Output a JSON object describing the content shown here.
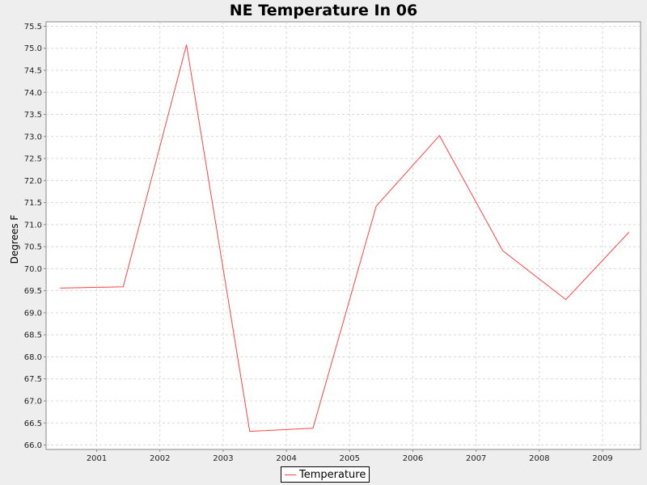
{
  "chart_data": {
    "type": "line",
    "title": "NE Temperature In 06",
    "xlabel": "",
    "ylabel": "Degrees F",
    "x_ticks": [
      "2001",
      "2002",
      "2003",
      "2004",
      "2005",
      "2006",
      "2007",
      "2008",
      "2009"
    ],
    "y_ticks": [
      "66.0",
      "66.5",
      "67.0",
      "67.5",
      "68.0",
      "68.5",
      "69.0",
      "69.5",
      "70.0",
      "70.5",
      "71.0",
      "71.5",
      "72.0",
      "72.5",
      "73.0",
      "73.5",
      "74.0",
      "74.5",
      "75.0",
      "75.5"
    ],
    "xlim": [
      2000.2,
      2009.6
    ],
    "ylim": [
      65.9,
      75.6
    ],
    "grid": true,
    "legend_position": "bottom-center",
    "series": [
      {
        "name": "Temperature",
        "color": "#ff4444",
        "x": [
          2000.42,
          2001.42,
          2002.42,
          2003.42,
          2004.42,
          2005.42,
          2006.42,
          2007.42,
          2008.42,
          2009.42
        ],
        "values": [
          69.56,
          69.59,
          75.08,
          66.31,
          66.38,
          71.42,
          73.02,
          70.41,
          69.3,
          70.83
        ]
      }
    ]
  }
}
